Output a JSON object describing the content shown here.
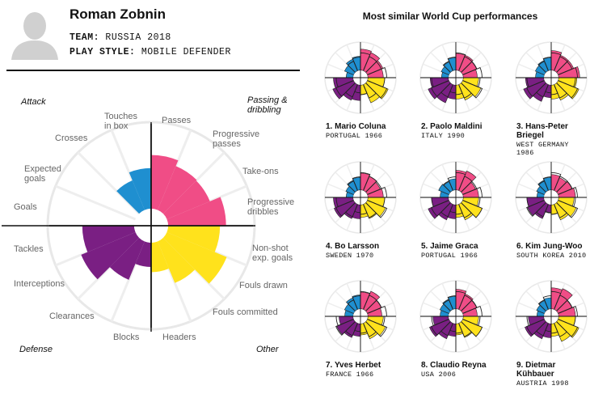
{
  "player": {
    "name": "Roman Zobnin",
    "team_label": "TEAM:",
    "team_value": "RUSSIA 2018",
    "style_label": "PLAY STYLE:",
    "style_value": "MOBILE DEFENDER",
    "avatar_icon": "person-silhouette-icon"
  },
  "quadrants": {
    "attack": "Attack",
    "passing": "Passing &\ndribbling",
    "defense": "Defense",
    "other": "Other"
  },
  "colors": {
    "attack": "#1f8fd0",
    "passing": "#f04d86",
    "defense": "#7a1f83",
    "other": "#ffe21c"
  },
  "chart_data": {
    "type": "radial-bar",
    "title": "",
    "scale_max": 1,
    "categories": [
      "Passes",
      "Progressive passes",
      "Take-ons",
      "Progressive dribbles",
      "Non-shot exp. goals",
      "Fouls drawn",
      "Fouls committed",
      "Headers",
      "Blocks",
      "Clearances",
      "Interceptions",
      "Tackles",
      "Goals",
      "Expected goals",
      "Crosses",
      "Touches in box"
    ],
    "groups": [
      "passing",
      "passing",
      "passing",
      "passing",
      "other",
      "other",
      "other",
      "other",
      "defense",
      "defense",
      "defense",
      "defense",
      "attack",
      "attack",
      "attack",
      "attack"
    ],
    "values": [
      0.62,
      0.55,
      0.54,
      0.67,
      0.6,
      0.75,
      0.52,
      0.34,
      0.28,
      0.48,
      0.68,
      0.6,
      0.0,
      0.0,
      0.37,
      0.47
    ]
  },
  "similar": {
    "title": "Most similar World Cup performances",
    "players": [
      {
        "name": "1. Mario Coluna",
        "sub": "PORTUGAL 1966",
        "values": [
          0.75,
          0.7,
          0.6,
          0.55,
          0.6,
          0.8,
          0.7,
          0.35,
          0.55,
          0.6,
          0.8,
          0.7,
          0.25,
          0.35,
          0.45,
          0.5
        ]
      },
      {
        "name": "2. Paolo Maldini",
        "sub": "ITALY 1990",
        "values": [
          0.6,
          0.6,
          0.55,
          0.5,
          0.55,
          0.7,
          0.6,
          0.5,
          0.5,
          0.7,
          0.8,
          0.65,
          0.25,
          0.3,
          0.35,
          0.45
        ]
      },
      {
        "name": "3. Hans-Peter\nBriegel",
        "sub": "WEST GERMANY 1986",
        "values": [
          0.7,
          0.6,
          0.6,
          0.75,
          0.65,
          0.8,
          0.6,
          0.5,
          0.45,
          0.65,
          0.8,
          0.65,
          0.3,
          0.35,
          0.4,
          0.45
        ]
      },
      {
        "name": "4. Bo Larsson",
        "sub": "SWEDEN 1970",
        "values": [
          0.6,
          0.55,
          0.5,
          0.55,
          0.6,
          0.7,
          0.55,
          0.45,
          0.5,
          0.55,
          0.75,
          0.7,
          0.25,
          0.3,
          0.4,
          0.45
        ]
      },
      {
        "name": "5. Jaime Graca",
        "sub": "PORTUGAL 1966",
        "values": [
          0.7,
          0.75,
          0.5,
          0.55,
          0.55,
          0.75,
          0.6,
          0.45,
          0.5,
          0.6,
          0.8,
          0.6,
          0.3,
          0.4,
          0.35,
          0.4
        ]
      },
      {
        "name": "6. Kim Jung-Woo",
        "sub": "SOUTH KOREA 2010",
        "values": [
          0.55,
          0.5,
          0.55,
          0.6,
          0.55,
          0.7,
          0.6,
          0.35,
          0.3,
          0.55,
          0.65,
          0.6,
          0.25,
          0.3,
          0.4,
          0.45
        ]
      },
      {
        "name": "7. Yves Herbet",
        "sub": "FRANCE 1966",
        "values": [
          0.6,
          0.7,
          0.55,
          0.5,
          0.55,
          0.7,
          0.6,
          0.4,
          0.45,
          0.55,
          0.65,
          0.5,
          0.3,
          0.35,
          0.45,
          0.5
        ]
      },
      {
        "name": "8. Claudio Reyna",
        "sub": "USA 2006",
        "values": [
          0.7,
          0.6,
          0.55,
          0.5,
          0.55,
          0.75,
          0.55,
          0.4,
          0.45,
          0.6,
          0.75,
          0.55,
          0.3,
          0.35,
          0.4,
          0.45
        ]
      },
      {
        "name": "9. Dietmar\nKühbauer",
        "sub": "AUSTRIA 1998",
        "values": [
          0.75,
          0.8,
          0.55,
          0.6,
          0.6,
          0.8,
          0.7,
          0.45,
          0.5,
          0.6,
          0.75,
          0.55,
          0.25,
          0.3,
          0.35,
          0.4
        ]
      }
    ]
  }
}
